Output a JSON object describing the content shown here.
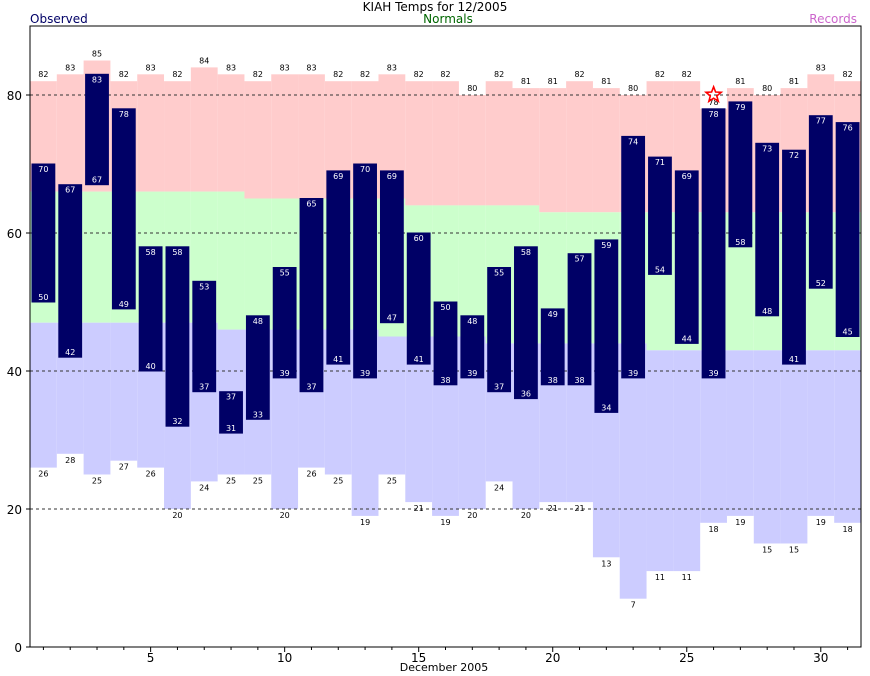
{
  "chart_data": {
    "type": "bar",
    "title": "KIAH Temps for 12/2005",
    "legend": {
      "observed": "Observed",
      "normals": "Normals",
      "records": "Records"
    },
    "xlabel": "December 2005",
    "ylabel": "",
    "ylim": [
      0,
      90
    ],
    "xlim": [
      0.5,
      31.5
    ],
    "yticks": [
      0,
      20,
      40,
      60,
      80
    ],
    "xticks": [
      5,
      10,
      15,
      20,
      25,
      30
    ],
    "grid_y": [
      20,
      40,
      60,
      80
    ],
    "colors": {
      "record_high_fill": "#ffcccc",
      "normal_fill": "#ccffcc",
      "record_low_fill": "#ccccff",
      "observed_bar": "#000066",
      "observed_label": "#000066",
      "normals_label": "#006600",
      "records_label": "#cc66cc",
      "record_star": "#ff0000"
    },
    "days": [
      1,
      2,
      3,
      4,
      5,
      6,
      7,
      8,
      9,
      10,
      11,
      12,
      13,
      14,
      15,
      16,
      17,
      18,
      19,
      20,
      21,
      22,
      23,
      24,
      25,
      26,
      27,
      28,
      29,
      30,
      31
    ],
    "observed_high": [
      70,
      67,
      83,
      78,
      58,
      58,
      53,
      37,
      48,
      55,
      65,
      69,
      70,
      69,
      60,
      50,
      48,
      55,
      58,
      49,
      57,
      59,
      74,
      71,
      69,
      78,
      79,
      73,
      72,
      77,
      76
    ],
    "observed_low": [
      50,
      42,
      67,
      49,
      40,
      32,
      37,
      31,
      33,
      39,
      37,
      41,
      39,
      47,
      41,
      38,
      39,
      37,
      36,
      38,
      38,
      34,
      39,
      54,
      44,
      39,
      58,
      48,
      41,
      52,
      45
    ],
    "normal_high": [
      66,
      66,
      66,
      66,
      66,
      66,
      66,
      66,
      65,
      65,
      65,
      65,
      65,
      65,
      64,
      64,
      64,
      64,
      64,
      63,
      63,
      63,
      63,
      63,
      63,
      63,
      63,
      63,
      63,
      63,
      63
    ],
    "normal_low": [
      47,
      47,
      47,
      47,
      47,
      47,
      47,
      46,
      46,
      46,
      46,
      46,
      46,
      45,
      45,
      45,
      45,
      44,
      44,
      44,
      44,
      44,
      44,
      43,
      43,
      43,
      43,
      43,
      43,
      43,
      43
    ],
    "record_high": [
      82,
      83,
      85,
      82,
      83,
      82,
      84,
      83,
      82,
      83,
      83,
      82,
      82,
      83,
      82,
      82,
      80,
      82,
      81,
      81,
      82,
      81,
      80,
      82,
      82,
      78,
      81,
      80,
      81,
      83,
      82
    ],
    "record_low": [
      26,
      28,
      25,
      27,
      26,
      20,
      24,
      25,
      25,
      20,
      26,
      25,
      19,
      25,
      21,
      19,
      20,
      24,
      20,
      21,
      21,
      13,
      7,
      11,
      11,
      18,
      19,
      15,
      15,
      19,
      18
    ],
    "record_set": [
      26
    ],
    "record_set_value": [
      78
    ]
  }
}
